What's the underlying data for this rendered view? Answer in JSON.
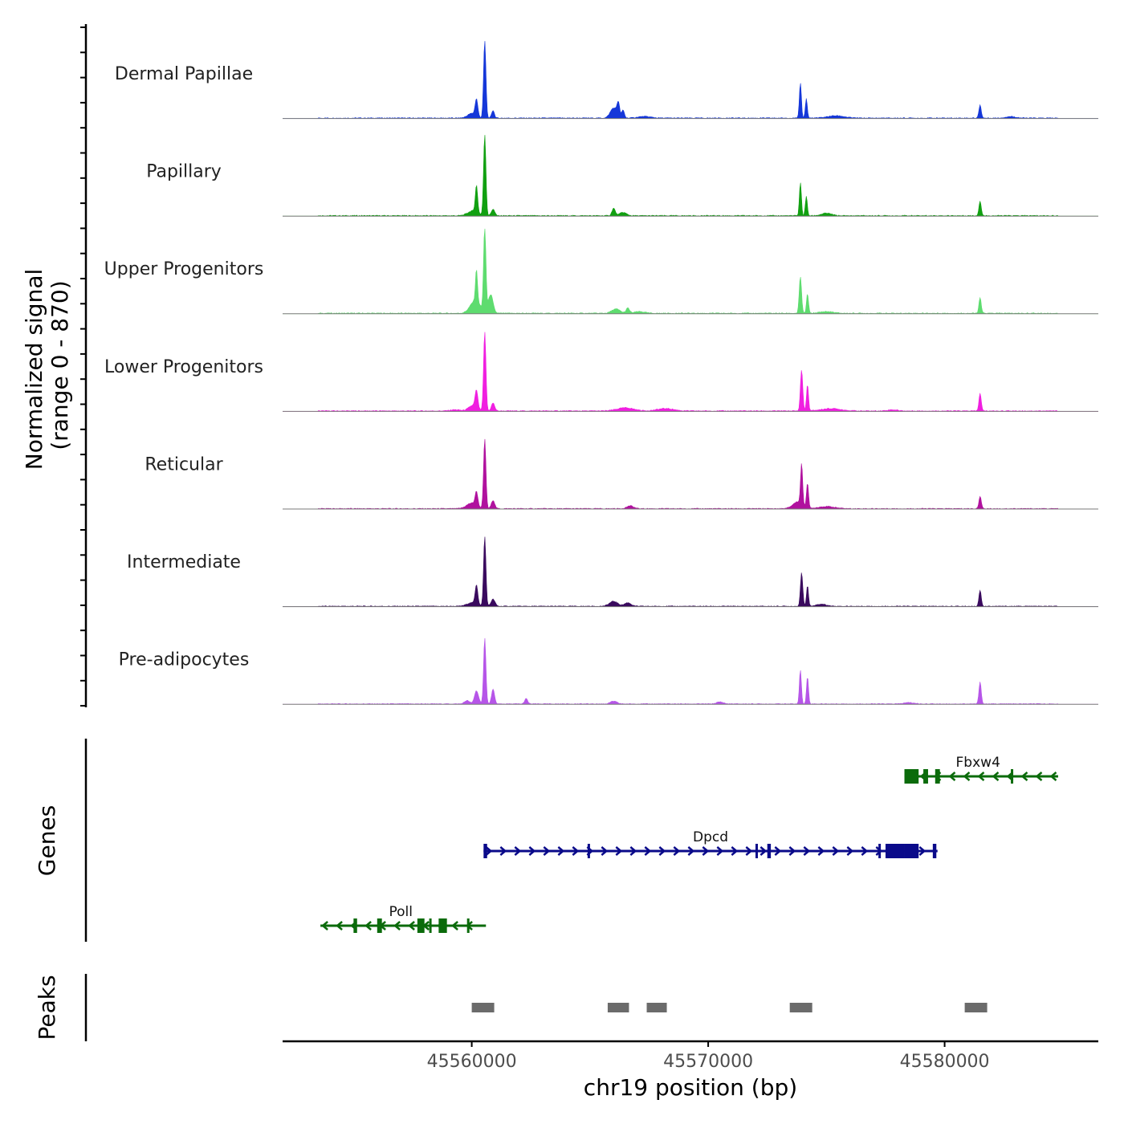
{
  "chart_data": {
    "type": "genome-coverage-tracks",
    "xlabel": "chr19 position (bp)",
    "xlim": [
      45552000,
      45586500
    ],
    "x_ticks": [
      45560000,
      45570000,
      45580000
    ],
    "x_tick_labels": [
      "45560000",
      "45570000",
      "45580000"
    ],
    "coverage": {
      "ylabel_line1": "Normalized signal",
      "ylabel_line2": "(range 0 - 870)",
      "y_range": [
        0,
        870
      ],
      "tracks": [
        {
          "name": "Dermal Papillae",
          "color": "#1537D9",
          "scale": 0.82,
          "peaks": [
            [
              45560000,
              0.06,
              250
            ],
            [
              45560200,
              0.22,
              80
            ],
            [
              45560550,
              1.0,
              70
            ],
            [
              45560900,
              0.1,
              80
            ],
            [
              45566000,
              0.13,
              200
            ],
            [
              45566200,
              0.17,
              80
            ],
            [
              45566400,
              0.1,
              80
            ],
            [
              45567300,
              0.02,
              400
            ],
            [
              45573900,
              0.46,
              60
            ],
            [
              45574150,
              0.25,
              60
            ],
            [
              45575400,
              0.03,
              500
            ],
            [
              45581500,
              0.17,
              70
            ],
            [
              45582800,
              0.02,
              300
            ]
          ]
        },
        {
          "name": "Papillary",
          "color": "#11A011",
          "scale": 0.86,
          "peaks": [
            [
              45560050,
              0.06,
              300
            ],
            [
              45560200,
              0.33,
              70
            ],
            [
              45560550,
              1.0,
              70
            ],
            [
              45560900,
              0.08,
              100
            ],
            [
              45566000,
              0.09,
              100
            ],
            [
              45566400,
              0.04,
              200
            ],
            [
              45573900,
              0.41,
              60
            ],
            [
              45574150,
              0.24,
              60
            ],
            [
              45575000,
              0.03,
              300
            ],
            [
              45581500,
              0.18,
              70
            ]
          ]
        },
        {
          "name": "Upper Progenitors",
          "color": "#5EDC6F",
          "scale": 0.9,
          "peaks": [
            [
              45560150,
              0.15,
              300
            ],
            [
              45560200,
              0.38,
              60
            ],
            [
              45560550,
              1.0,
              70
            ],
            [
              45560800,
              0.22,
              140
            ],
            [
              45566100,
              0.05,
              250
            ],
            [
              45566600,
              0.06,
              100
            ],
            [
              45567100,
              0.02,
              300
            ],
            [
              45573900,
              0.43,
              70
            ],
            [
              45574200,
              0.23,
              60
            ],
            [
              45575000,
              0.02,
              400
            ],
            [
              45581500,
              0.18,
              70
            ]
          ]
        },
        {
          "name": "Lower Progenitors",
          "color": "#F01FE0",
          "scale": 0.84,
          "peaks": [
            [
              45559300,
              0.015,
              300
            ],
            [
              45560050,
              0.07,
              250
            ],
            [
              45560200,
              0.22,
              80
            ],
            [
              45560550,
              1.0,
              70
            ],
            [
              45560900,
              0.1,
              100
            ],
            [
              45566500,
              0.04,
              500
            ],
            [
              45568200,
              0.03,
              500
            ],
            [
              45573950,
              0.52,
              70
            ],
            [
              45574200,
              0.33,
              60
            ],
            [
              45575200,
              0.03,
              600
            ],
            [
              45577800,
              0.015,
              300
            ],
            [
              45581500,
              0.22,
              70
            ]
          ]
        },
        {
          "name": "Reticular",
          "color": "#B0119E",
          "scale": 0.74,
          "peaks": [
            [
              45560000,
              0.08,
              300
            ],
            [
              45560200,
              0.2,
              80
            ],
            [
              45560550,
              1.0,
              70
            ],
            [
              45560900,
              0.12,
              100
            ],
            [
              45566700,
              0.04,
              200
            ],
            [
              45573800,
              0.1,
              300
            ],
            [
              45573950,
              0.58,
              60
            ],
            [
              45574200,
              0.35,
              60
            ],
            [
              45575000,
              0.03,
              500
            ],
            [
              45581500,
              0.18,
              70
            ]
          ]
        },
        {
          "name": "Intermediate",
          "color": "#3A0A5E",
          "scale": 0.74,
          "peaks": [
            [
              45560000,
              0.05,
              300
            ],
            [
              45560200,
              0.28,
              80
            ],
            [
              45560550,
              1.0,
              70
            ],
            [
              45560900,
              0.1,
              120
            ],
            [
              45566000,
              0.07,
              250
            ],
            [
              45566600,
              0.05,
              200
            ],
            [
              45573950,
              0.48,
              70
            ],
            [
              45574200,
              0.3,
              60
            ],
            [
              45574800,
              0.03,
              300
            ],
            [
              45581500,
              0.23,
              70
            ]
          ]
        },
        {
          "name": "Pre-adipocytes",
          "color": "#B655E8",
          "scale": 0.7,
          "peaks": [
            [
              45559800,
              0.05,
              150
            ],
            [
              45560200,
              0.2,
              120
            ],
            [
              45560550,
              1.0,
              70
            ],
            [
              45560900,
              0.22,
              90
            ],
            [
              45562300,
              0.08,
              90
            ],
            [
              45566000,
              0.04,
              200
            ],
            [
              45570500,
              0.03,
              200
            ],
            [
              45573900,
              0.52,
              60
            ],
            [
              45574200,
              0.41,
              60
            ],
            [
              45578500,
              0.02,
              300
            ],
            [
              45581500,
              0.33,
              70
            ]
          ]
        }
      ]
    },
    "genes": {
      "ylabel": "Genes",
      "items": [
        {
          "name": "Fbxw4",
          "strand": "-",
          "start": 45578300,
          "end": 45584800,
          "color": "#0B6B0B",
          "exons": [
            [
              45578300,
              45578900
            ],
            [
              45579100,
              45579300
            ],
            [
              45579600,
              45579800
            ],
            [
              45582800,
              45582900
            ]
          ]
        },
        {
          "name": "Dpcd",
          "strand": "+",
          "start": 45560500,
          "end": 45579700,
          "color": "#0A0A8A",
          "exons": [
            [
              45560500,
              45560650
            ],
            [
              45564900,
              45565000
            ],
            [
              45572000,
              45572100
            ],
            [
              45572500,
              45572650
            ],
            [
              45577200,
              45577300
            ],
            [
              45577500,
              45578300
            ],
            [
              45578300,
              45578900
            ],
            [
              45579500,
              45579650
            ]
          ]
        },
        {
          "name": "Poll",
          "strand": "-",
          "start": 45553600,
          "end": 45560600,
          "color": "#0B6B0B",
          "exons": [
            [
              45555000,
              45555150
            ],
            [
              45556000,
              45556200
            ],
            [
              45557700,
              45558000
            ],
            [
              45558200,
              45558300
            ],
            [
              45558600,
              45558950
            ],
            [
              45559800,
              45559900
            ]
          ]
        }
      ]
    },
    "peaks": {
      "ylabel": "Peaks",
      "color": "#6B6B6B",
      "regions": [
        [
          45560000,
          45560950
        ],
        [
          45565750,
          45566650
        ],
        [
          45567400,
          45568250
        ],
        [
          45573450,
          45574400
        ],
        [
          45580850,
          45581800
        ]
      ]
    }
  }
}
